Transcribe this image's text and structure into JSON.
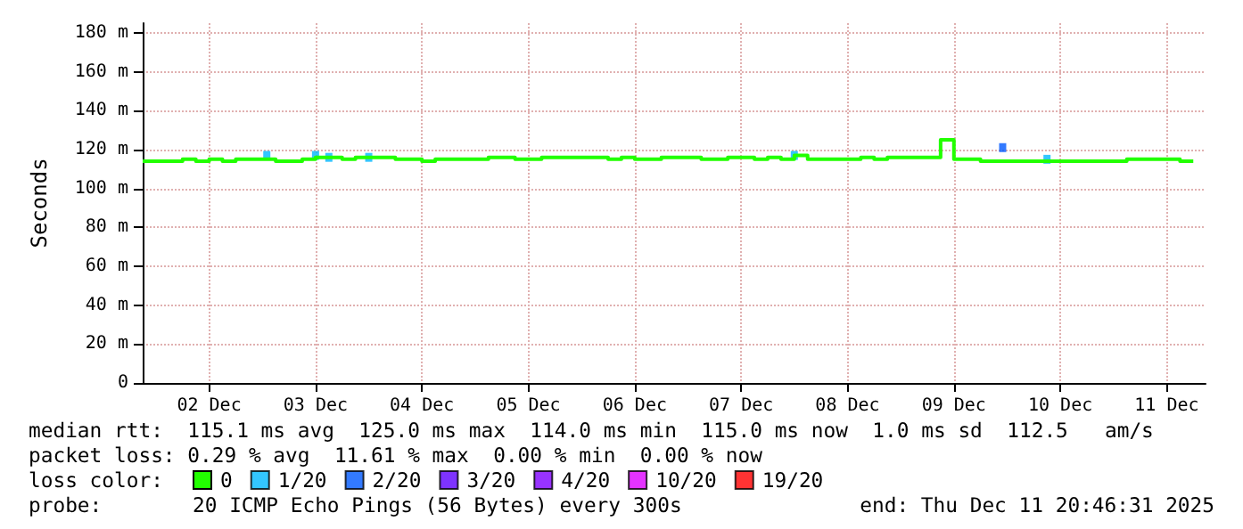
{
  "chart_data": {
    "type": "step",
    "ylabel": "Seconds",
    "annotations": [
      "median rtt:  115.1 ms avg  125.0 ms max  114.0 ms min  115.0 ms now  1.0 ms sd  112.5   am/s",
      "packet loss: 0.29 % avg  11.61 % max  0.00 % min  0.00 % now",
      "loss color:",
      "probe:",
      "20 ICMP Echo Pings (56 Bytes) every 300s",
      "end: Thu Dec 11 20:46:31 2025"
    ],
    "xlim": [
      "2025-12-01T21:00",
      "2025-12-11T20:46"
    ],
    "xticks": [
      {
        "value": "2025-12-02T12:00",
        "label": "02 Dec"
      },
      {
        "value": "2025-12-03T12:00",
        "label": "03 Dec"
      },
      {
        "value": "2025-12-04T12:00",
        "label": "04 Dec"
      },
      {
        "value": "2025-12-05T12:00",
        "label": "05 Dec"
      },
      {
        "value": "2025-12-06T12:00",
        "label": "06 Dec"
      },
      {
        "value": "2025-12-07T12:00",
        "label": "07 Dec"
      },
      {
        "value": "2025-12-08T12:00",
        "label": "08 Dec"
      },
      {
        "value": "2025-12-09T12:00",
        "label": "09 Dec"
      },
      {
        "value": "2025-12-10T12:00",
        "label": "10 Dec"
      },
      {
        "value": "2025-12-11T12:00",
        "label": "11 Dec"
      }
    ],
    "ylim": [
      0,
      185
    ],
    "yticks": [
      0,
      {
        "value": 20,
        "label": "20 m"
      },
      {
        "value": 40,
        "label": "40 m"
      },
      {
        "value": 60,
        "label": "60 m"
      },
      {
        "value": 80,
        "label": "80 m"
      },
      {
        "value": 100,
        "label": "100 m"
      },
      {
        "value": 120,
        "label": "120 m"
      },
      {
        "value": 140,
        "label": "140 m"
      },
      {
        "value": 160,
        "label": "160 m"
      },
      {
        "value": 180,
        "label": "180 m"
      }
    ],
    "grid": true,
    "legend": "bottom",
    "series": [
      {
        "name": "0",
        "color": "#22ff00",
        "x": [
          "2025-12-01T21:00",
          "2025-12-02T00:00",
          "2025-12-02T03:00",
          "2025-12-02T06:00",
          "2025-12-02T09:00",
          "2025-12-02T12:00",
          "2025-12-02T15:00",
          "2025-12-02T18:00",
          "2025-12-02T21:00",
          "2025-12-03T00:00",
          "2025-12-03T03:00",
          "2025-12-03T06:00",
          "2025-12-03T09:00",
          "2025-12-03T12:00",
          "2025-12-03T15:00",
          "2025-12-03T18:00",
          "2025-12-03T21:00",
          "2025-12-04T00:00",
          "2025-12-04T03:00",
          "2025-12-04T06:00",
          "2025-12-04T09:00",
          "2025-12-04T12:00",
          "2025-12-04T15:00",
          "2025-12-04T18:00",
          "2025-12-04T21:00",
          "2025-12-05T00:00",
          "2025-12-05T03:00",
          "2025-12-05T06:00",
          "2025-12-05T09:00",
          "2025-12-05T12:00",
          "2025-12-05T15:00",
          "2025-12-05T18:00",
          "2025-12-05T21:00",
          "2025-12-06T00:00",
          "2025-12-06T03:00",
          "2025-12-06T06:00",
          "2025-12-06T09:00",
          "2025-12-06T12:00",
          "2025-12-06T15:00",
          "2025-12-06T18:00",
          "2025-12-06T21:00",
          "2025-12-07T00:00",
          "2025-12-07T03:00",
          "2025-12-07T06:00",
          "2025-12-07T09:00",
          "2025-12-07T12:00",
          "2025-12-07T15:00",
          "2025-12-07T18:00",
          "2025-12-07T21:00",
          "2025-12-08T00:00",
          "2025-12-08T03:00",
          "2025-12-08T06:00",
          "2025-12-08T09:00",
          "2025-12-08T12:00",
          "2025-12-08T15:00",
          "2025-12-08T18:00",
          "2025-12-08T21:00",
          "2025-12-09T00:00",
          "2025-12-09T03:00",
          "2025-12-09T06:00",
          "2025-12-09T09:00",
          "2025-12-09T12:00",
          "2025-12-09T15:00",
          "2025-12-09T18:00",
          "2025-12-09T21:00",
          "2025-12-10T00:00",
          "2025-12-10T03:00",
          "2025-12-10T06:00",
          "2025-12-10T09:00",
          "2025-12-10T12:00",
          "2025-12-10T15:00",
          "2025-12-10T18:00",
          "2025-12-10T21:00",
          "2025-12-11T00:00",
          "2025-12-11T03:00",
          "2025-12-11T06:00",
          "2025-12-11T09:00",
          "2025-12-11T12:00",
          "2025-12-11T15:00",
          "2025-12-11T18:00"
        ],
        "values": [
          114,
          114,
          114,
          115,
          114,
          115,
          114,
          115,
          115,
          115,
          114,
          114,
          115,
          116,
          116,
          115,
          116,
          116,
          116,
          115,
          115,
          114,
          115,
          115,
          115,
          115,
          116,
          116,
          115,
          115,
          116,
          116,
          116,
          116,
          116,
          115,
          116,
          115,
          115,
          116,
          116,
          116,
          115,
          115,
          116,
          116,
          115,
          116,
          115,
          117,
          115,
          115,
          115,
          115,
          116,
          115,
          116,
          116,
          116,
          116,
          125,
          115,
          115,
          114,
          114,
          114,
          114,
          114,
          114,
          114,
          114,
          114,
          114,
          114,
          115,
          115,
          115,
          115,
          114,
          114
        ]
      },
      {
        "name": "1/20",
        "color": "#00b8ff",
        "type": "scatter",
        "x": [
          "2025-12-03T01:00",
          "2025-12-03T12:00",
          "2025-12-03T15:00",
          "2025-12-04T00:00",
          "2025-12-08T00:00",
          "2025-12-10T09:00"
        ],
        "values": [
          117,
          117,
          116,
          116,
          117,
          115
        ]
      },
      {
        "name": "2/20",
        "color": "#0059ff",
        "type": "scatter",
        "x": [
          "2025-12-09T23:00"
        ],
        "values": [
          121
        ]
      },
      {
        "name": "3/20",
        "color": "#5e00ff",
        "type": "scatter"
      },
      {
        "name": "4/20",
        "color": "#7e00ff",
        "type": "scatter"
      },
      {
        "name": "10/20",
        "color": "#dd00ff",
        "type": "scatter"
      },
      {
        "name": "19/20",
        "color": "#ff0000",
        "type": "scatter"
      }
    ]
  }
}
